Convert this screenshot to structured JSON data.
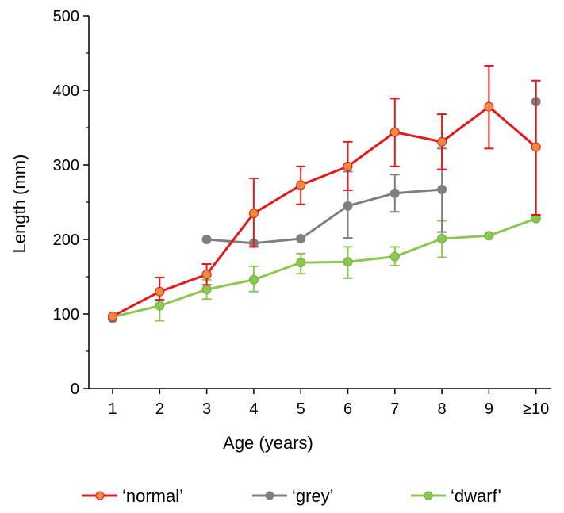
{
  "chart_data": {
    "type": "line",
    "title": "",
    "xlabel": "Age (years)",
    "ylabel": "Length (mm)",
    "categories": [
      "1",
      "2",
      "3",
      "4",
      "5",
      "6",
      "7",
      "8",
      "9",
      "≥10"
    ],
    "ylim": [
      0,
      500
    ],
    "yticks": [
      0,
      100,
      200,
      300,
      400,
      500
    ],
    "grid": false,
    "legend_placement": "bottom",
    "series": [
      {
        "name": "‘normal’",
        "line_color": "#e31a1c",
        "marker_color": "#f08a3c",
        "marker_edge": "#e31a1c",
        "values": [
          97,
          130,
          153,
          235,
          273,
          298,
          344,
          331,
          378,
          324
        ],
        "err_low": [
          null,
          11,
          14,
          45,
          26,
          32,
          46,
          37,
          56,
          91
        ],
        "err_high": [
          null,
          19,
          14,
          47,
          25,
          33,
          45,
          37,
          55,
          89
        ]
      },
      {
        "name": "‘grey’",
        "line_color": "#7f7f7f",
        "marker_color": "#7f7f7f",
        "marker_edge": "#7f7f7f",
        "values": [
          94,
          null,
          200,
          195,
          201,
          245,
          262,
          267,
          null,
          385
        ],
        "err_low": [
          null,
          null,
          null,
          null,
          null,
          43,
          25,
          57,
          null,
          null
        ],
        "err_high": [
          null,
          null,
          null,
          null,
          null,
          46,
          25,
          55,
          null,
          null
        ]
      },
      {
        "name": "‘dwarf’",
        "line_color": "#8cc850",
        "marker_color": "#8cc850",
        "marker_edge": "#6fae3a",
        "values": [
          96,
          111,
          133,
          146,
          169,
          170,
          177,
          201,
          205,
          228
        ],
        "err_low": [
          null,
          20,
          13,
          16,
          15,
          22,
          12,
          25,
          null,
          null
        ],
        "err_high": [
          null,
          20,
          13,
          18,
          12,
          20,
          13,
          24,
          null,
          null
        ]
      }
    ]
  }
}
